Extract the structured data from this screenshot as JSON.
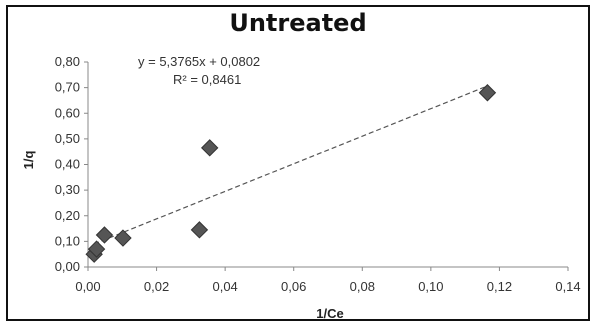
{
  "chart_data": {
    "type": "scatter",
    "title": "Untreated",
    "xlabel": "1/Ce",
    "ylabel": "1/q",
    "xlim": [
      0,
      0.14
    ],
    "ylim": [
      0,
      0.8
    ],
    "x_ticks": [
      "0,00",
      "0,02",
      "0,04",
      "0,06",
      "0,08",
      "0,10",
      "0,12",
      "0,14"
    ],
    "y_ticks": [
      "0,00",
      "0,10",
      "0,20",
      "0,30",
      "0,40",
      "0,50",
      "0,60",
      "0,70",
      "0,80"
    ],
    "points": [
      {
        "x": 0.0018,
        "y": 0.05
      },
      {
        "x": 0.0025,
        "y": 0.07
      },
      {
        "x": 0.0048,
        "y": 0.125
      },
      {
        "x": 0.0102,
        "y": 0.113
      },
      {
        "x": 0.0325,
        "y": 0.145
      },
      {
        "x": 0.0355,
        "y": 0.465
      },
      {
        "x": 0.1165,
        "y": 0.68
      }
    ],
    "trendline": {
      "slope": 5.3765,
      "intercept": 0.0802,
      "x_range": [
        0.0018,
        0.1165
      ]
    },
    "equation_label": "y = 5,3765x + 0,0802",
    "r2_label": "R² = 0,8461",
    "grid": false,
    "legend": "none",
    "colors": {
      "marker": "#555555",
      "marker_edge": "#333333",
      "trendline": "#555555",
      "axis": "#888888"
    }
  }
}
